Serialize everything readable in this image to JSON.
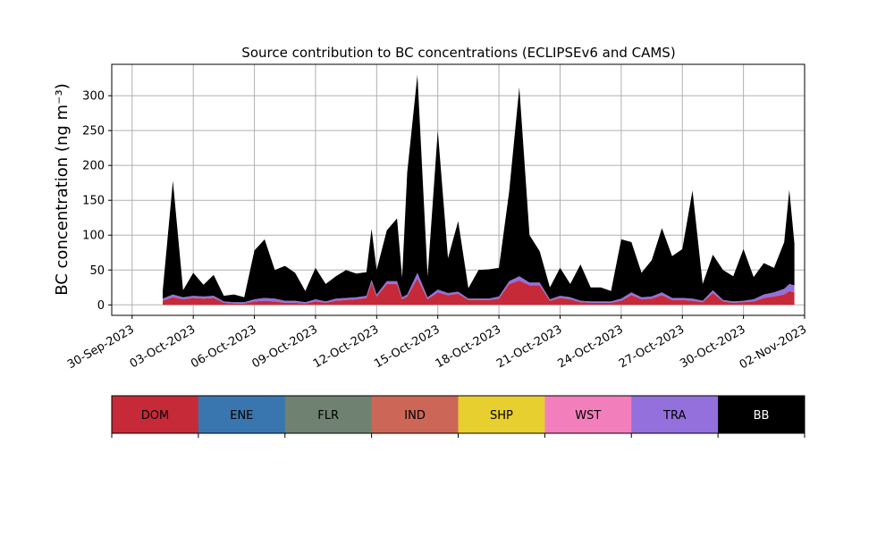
{
  "chart_data": {
    "type": "area",
    "title": "Source contribution to BC concentrations (ECLIPSEv6 and CAMS)",
    "ylabel": "BC concentration (ng m⁻³)",
    "xlabel": "",
    "xlim": [
      "2023-09-29",
      "2023-11-02"
    ],
    "ylim": [
      -15,
      345
    ],
    "x_ticks": [
      "30-Sep-2023",
      "03-Oct-2023",
      "06-Oct-2023",
      "09-Oct-2023",
      "12-Oct-2023",
      "15-Oct-2023",
      "18-Oct-2023",
      "21-Oct-2023",
      "24-Oct-2023",
      "27-Oct-2023",
      "30-Oct-2023",
      "02-Nov-2023"
    ],
    "y_ticks": [
      0,
      50,
      100,
      150,
      200,
      250,
      300
    ],
    "grid": true,
    "stacked": true,
    "categories": [
      "DOM",
      "ENE",
      "FLR",
      "IND",
      "SHP",
      "WST",
      "TRA",
      "BB"
    ],
    "colors": {
      "DOM": "#c62a39",
      "ENE": "#3976af",
      "FLR": "#6f8170",
      "IND": "#cc6656",
      "SHP": "#e6cf2e",
      "WST": "#f27fbb",
      "TRA": "#9370db",
      "BB": "#000000"
    },
    "legend": {
      "position": "below",
      "items": [
        {
          "label": "DOM",
          "color": "#c62a39",
          "text_color": "#000000"
        },
        {
          "label": "ENE",
          "color": "#3976af",
          "text_color": "#000000"
        },
        {
          "label": "FLR",
          "color": "#6f8170",
          "text_color": "#000000"
        },
        {
          "label": "IND",
          "color": "#cc6656",
          "text_color": "#000000"
        },
        {
          "label": "SHP",
          "color": "#e6cf2e",
          "text_color": "#000000"
        },
        {
          "label": "WST",
          "color": "#f27fbb",
          "text_color": "#000000"
        },
        {
          "label": "TRA",
          "color": "#9370db",
          "text_color": "#000000"
        },
        {
          "label": "BB",
          "color": "#000000",
          "text_color": "#ffffff"
        }
      ]
    },
    "series": [
      {
        "name": "DOM",
        "points": [
          [
            "2023-10-01T12:00",
            6
          ],
          [
            "2023-10-02T00:00",
            11
          ],
          [
            "2023-10-02T12:00",
            8
          ],
          [
            "2023-10-03T00:00",
            10
          ],
          [
            "2023-10-03T12:00",
            9
          ],
          [
            "2023-10-04T00:00",
            10
          ],
          [
            "2023-10-04T12:00",
            3
          ],
          [
            "2023-10-05T00:00",
            2
          ],
          [
            "2023-10-05T12:00",
            2
          ],
          [
            "2023-10-06T00:00",
            5
          ],
          [
            "2023-10-06T12:00",
            6
          ],
          [
            "2023-10-07T00:00",
            5
          ],
          [
            "2023-10-07T12:00",
            3
          ],
          [
            "2023-10-08T00:00",
            3
          ],
          [
            "2023-10-08T12:00",
            2
          ],
          [
            "2023-10-09T00:00",
            5
          ],
          [
            "2023-10-09T12:00",
            3
          ],
          [
            "2023-10-10T00:00",
            6
          ],
          [
            "2023-10-10T12:00",
            7
          ],
          [
            "2023-10-11T00:00",
            8
          ],
          [
            "2023-10-11T12:00",
            10
          ],
          [
            "2023-10-11T18:00",
            32
          ],
          [
            "2023-10-12T00:00",
            12
          ],
          [
            "2023-10-12T12:00",
            30
          ],
          [
            "2023-10-13T00:00",
            30
          ],
          [
            "2023-10-13T06:00",
            8
          ],
          [
            "2023-10-13T12:00",
            12
          ],
          [
            "2023-10-14T00:00",
            38
          ],
          [
            "2023-10-14T12:00",
            8
          ],
          [
            "2023-10-15T00:00",
            18
          ],
          [
            "2023-10-15T12:00",
            14
          ],
          [
            "2023-10-16T00:00",
            16
          ],
          [
            "2023-10-16T12:00",
            7
          ],
          [
            "2023-10-17T00:00",
            7
          ],
          [
            "2023-10-17T12:00",
            7
          ],
          [
            "2023-10-18T00:00",
            9
          ],
          [
            "2023-10-18T12:00",
            30
          ],
          [
            "2023-10-19T00:00",
            35
          ],
          [
            "2023-10-19T12:00",
            28
          ],
          [
            "2023-10-20T00:00",
            28
          ],
          [
            "2023-10-20T12:00",
            6
          ],
          [
            "2023-10-21T00:00",
            10
          ],
          [
            "2023-10-21T12:00",
            8
          ],
          [
            "2023-10-22T00:00",
            4
          ],
          [
            "2023-10-22T12:00",
            3
          ],
          [
            "2023-10-23T00:00",
            3
          ],
          [
            "2023-10-23T12:00",
            3
          ],
          [
            "2023-10-24T00:00",
            6
          ],
          [
            "2023-10-24T12:00",
            14
          ],
          [
            "2023-10-25T00:00",
            8
          ],
          [
            "2023-10-25T12:00",
            9
          ],
          [
            "2023-10-26T00:00",
            14
          ],
          [
            "2023-10-26T12:00",
            7
          ],
          [
            "2023-10-27T00:00",
            7
          ],
          [
            "2023-10-27T12:00",
            6
          ],
          [
            "2023-10-28T00:00",
            4
          ],
          [
            "2023-10-28T12:00",
            17
          ],
          [
            "2023-10-29T00:00",
            5
          ],
          [
            "2023-10-29T12:00",
            3
          ],
          [
            "2023-10-30T00:00",
            4
          ],
          [
            "2023-10-30T12:00",
            5
          ],
          [
            "2023-10-31T00:00",
            10
          ],
          [
            "2023-10-31T12:00",
            12
          ],
          [
            "2023-11-01T00:00",
            15
          ],
          [
            "2023-11-01T06:00",
            20
          ],
          [
            "2023-11-01T12:00",
            18
          ]
        ]
      },
      {
        "name": "TRA",
        "points": [
          [
            "2023-10-01T12:00",
            3
          ],
          [
            "2023-10-02T00:00",
            4
          ],
          [
            "2023-10-02T12:00",
            3
          ],
          [
            "2023-10-03T00:00",
            3
          ],
          [
            "2023-10-03T12:00",
            3
          ],
          [
            "2023-10-04T00:00",
            3
          ],
          [
            "2023-10-04T12:00",
            2
          ],
          [
            "2023-10-05T00:00",
            2
          ],
          [
            "2023-10-05T12:00",
            2
          ],
          [
            "2023-10-06T00:00",
            3
          ],
          [
            "2023-10-06T12:00",
            4
          ],
          [
            "2023-10-07T00:00",
            4
          ],
          [
            "2023-10-07T12:00",
            3
          ],
          [
            "2023-10-08T00:00",
            3
          ],
          [
            "2023-10-08T12:00",
            2
          ],
          [
            "2023-10-09T00:00",
            3
          ],
          [
            "2023-10-09T12:00",
            2
          ],
          [
            "2023-10-10T00:00",
            3
          ],
          [
            "2023-10-10T12:00",
            3
          ],
          [
            "2023-10-11T00:00",
            3
          ],
          [
            "2023-10-11T12:00",
            3
          ],
          [
            "2023-10-11T18:00",
            4
          ],
          [
            "2023-10-12T00:00",
            3
          ],
          [
            "2023-10-12T12:00",
            4
          ],
          [
            "2023-10-13T00:00",
            4
          ],
          [
            "2023-10-13T06:00",
            3
          ],
          [
            "2023-10-13T12:00",
            3
          ],
          [
            "2023-10-14T00:00",
            8
          ],
          [
            "2023-10-14T12:00",
            3
          ],
          [
            "2023-10-15T00:00",
            4
          ],
          [
            "2023-10-15T12:00",
            3
          ],
          [
            "2023-10-16T00:00",
            3
          ],
          [
            "2023-10-16T12:00",
            2
          ],
          [
            "2023-10-17T00:00",
            2
          ],
          [
            "2023-10-17T12:00",
            2
          ],
          [
            "2023-10-18T00:00",
            3
          ],
          [
            "2023-10-18T12:00",
            4
          ],
          [
            "2023-10-19T00:00",
            6
          ],
          [
            "2023-10-19T12:00",
            4
          ],
          [
            "2023-10-20T00:00",
            4
          ],
          [
            "2023-10-20T12:00",
            2
          ],
          [
            "2023-10-21T00:00",
            3
          ],
          [
            "2023-10-21T12:00",
            3
          ],
          [
            "2023-10-22T00:00",
            2
          ],
          [
            "2023-10-22T12:00",
            2
          ],
          [
            "2023-10-23T00:00",
            2
          ],
          [
            "2023-10-23T12:00",
            2
          ],
          [
            "2023-10-24T00:00",
            3
          ],
          [
            "2023-10-24T12:00",
            4
          ],
          [
            "2023-10-25T00:00",
            3
          ],
          [
            "2023-10-25T12:00",
            3
          ],
          [
            "2023-10-26T00:00",
            4
          ],
          [
            "2023-10-26T12:00",
            3
          ],
          [
            "2023-10-27T00:00",
            3
          ],
          [
            "2023-10-27T12:00",
            3
          ],
          [
            "2023-10-28T00:00",
            2
          ],
          [
            "2023-10-28T12:00",
            4
          ],
          [
            "2023-10-29T00:00",
            2
          ],
          [
            "2023-10-29T12:00",
            2
          ],
          [
            "2023-10-30T00:00",
            2
          ],
          [
            "2023-10-30T12:00",
            3
          ],
          [
            "2023-10-31T00:00",
            5
          ],
          [
            "2023-10-31T12:00",
            6
          ],
          [
            "2023-11-01T00:00",
            8
          ],
          [
            "2023-11-01T06:00",
            10
          ],
          [
            "2023-11-01T12:00",
            10
          ]
        ]
      },
      {
        "name": "BB",
        "points": [
          [
            "2023-10-01T12:00",
            11
          ],
          [
            "2023-10-02T00:00",
            163
          ],
          [
            "2023-10-02T12:00",
            10
          ],
          [
            "2023-10-03T00:00",
            33
          ],
          [
            "2023-10-03T12:00",
            17
          ],
          [
            "2023-10-04T00:00",
            30
          ],
          [
            "2023-10-04T12:00",
            8
          ],
          [
            "2023-10-05T00:00",
            11
          ],
          [
            "2023-10-05T12:00",
            7
          ],
          [
            "2023-10-06T00:00",
            70
          ],
          [
            "2023-10-06T12:00",
            84
          ],
          [
            "2023-10-07T00:00",
            41
          ],
          [
            "2023-10-07T12:00",
            50
          ],
          [
            "2023-10-08T00:00",
            40
          ],
          [
            "2023-10-08T12:00",
            16
          ],
          [
            "2023-10-09T00:00",
            45
          ],
          [
            "2023-10-09T12:00",
            25
          ],
          [
            "2023-10-10T00:00",
            32
          ],
          [
            "2023-10-10T12:00",
            40
          ],
          [
            "2023-10-11T00:00",
            34
          ],
          [
            "2023-10-11T12:00",
            34
          ],
          [
            "2023-10-11T18:00",
            73
          ],
          [
            "2023-10-12T00:00",
            35
          ],
          [
            "2023-10-12T12:00",
            73
          ],
          [
            "2023-10-13T00:00",
            90
          ],
          [
            "2023-10-13T06:00",
            28
          ],
          [
            "2023-10-13T12:00",
            175
          ],
          [
            "2023-10-14T00:00",
            284
          ],
          [
            "2023-10-14T12:00",
            30
          ],
          [
            "2023-10-15T00:00",
            228
          ],
          [
            "2023-10-15T12:00",
            50
          ],
          [
            "2023-10-16T00:00",
            101
          ],
          [
            "2023-10-16T12:00",
            15
          ],
          [
            "2023-10-17T00:00",
            41
          ],
          [
            "2023-10-17T12:00",
            42
          ],
          [
            "2023-10-18T00:00",
            41
          ],
          [
            "2023-10-18T12:00",
            128
          ],
          [
            "2023-10-19T00:00",
            271
          ],
          [
            "2023-10-19T12:00",
            68
          ],
          [
            "2023-10-20T00:00",
            45
          ],
          [
            "2023-10-20T12:00",
            17
          ],
          [
            "2023-10-21T00:00",
            40
          ],
          [
            "2023-10-21T12:00",
            19
          ],
          [
            "2023-10-22T00:00",
            52
          ],
          [
            "2023-10-22T12:00",
            20
          ],
          [
            "2023-10-23T00:00",
            20
          ],
          [
            "2023-10-23T12:00",
            15
          ],
          [
            "2023-10-24T00:00",
            85
          ],
          [
            "2023-10-24T12:00",
            72
          ],
          [
            "2023-10-25T00:00",
            35
          ],
          [
            "2023-10-25T12:00",
            52
          ],
          [
            "2023-10-26T00:00",
            92
          ],
          [
            "2023-10-26T12:00",
            60
          ],
          [
            "2023-10-27T00:00",
            70
          ],
          [
            "2023-10-27T12:00",
            155
          ],
          [
            "2023-10-28T00:00",
            24
          ],
          [
            "2023-10-28T12:00",
            51
          ],
          [
            "2023-10-29T00:00",
            43
          ],
          [
            "2023-10-29T12:00",
            36
          ],
          [
            "2023-10-30T00:00",
            74
          ],
          [
            "2023-10-30T12:00",
            32
          ],
          [
            "2023-10-31T00:00",
            45
          ],
          [
            "2023-10-31T12:00",
            35
          ],
          [
            "2023-11-01T00:00",
            67
          ],
          [
            "2023-11-01T06:00",
            135
          ],
          [
            "2023-11-01T12:00",
            60
          ]
        ]
      }
    ]
  }
}
